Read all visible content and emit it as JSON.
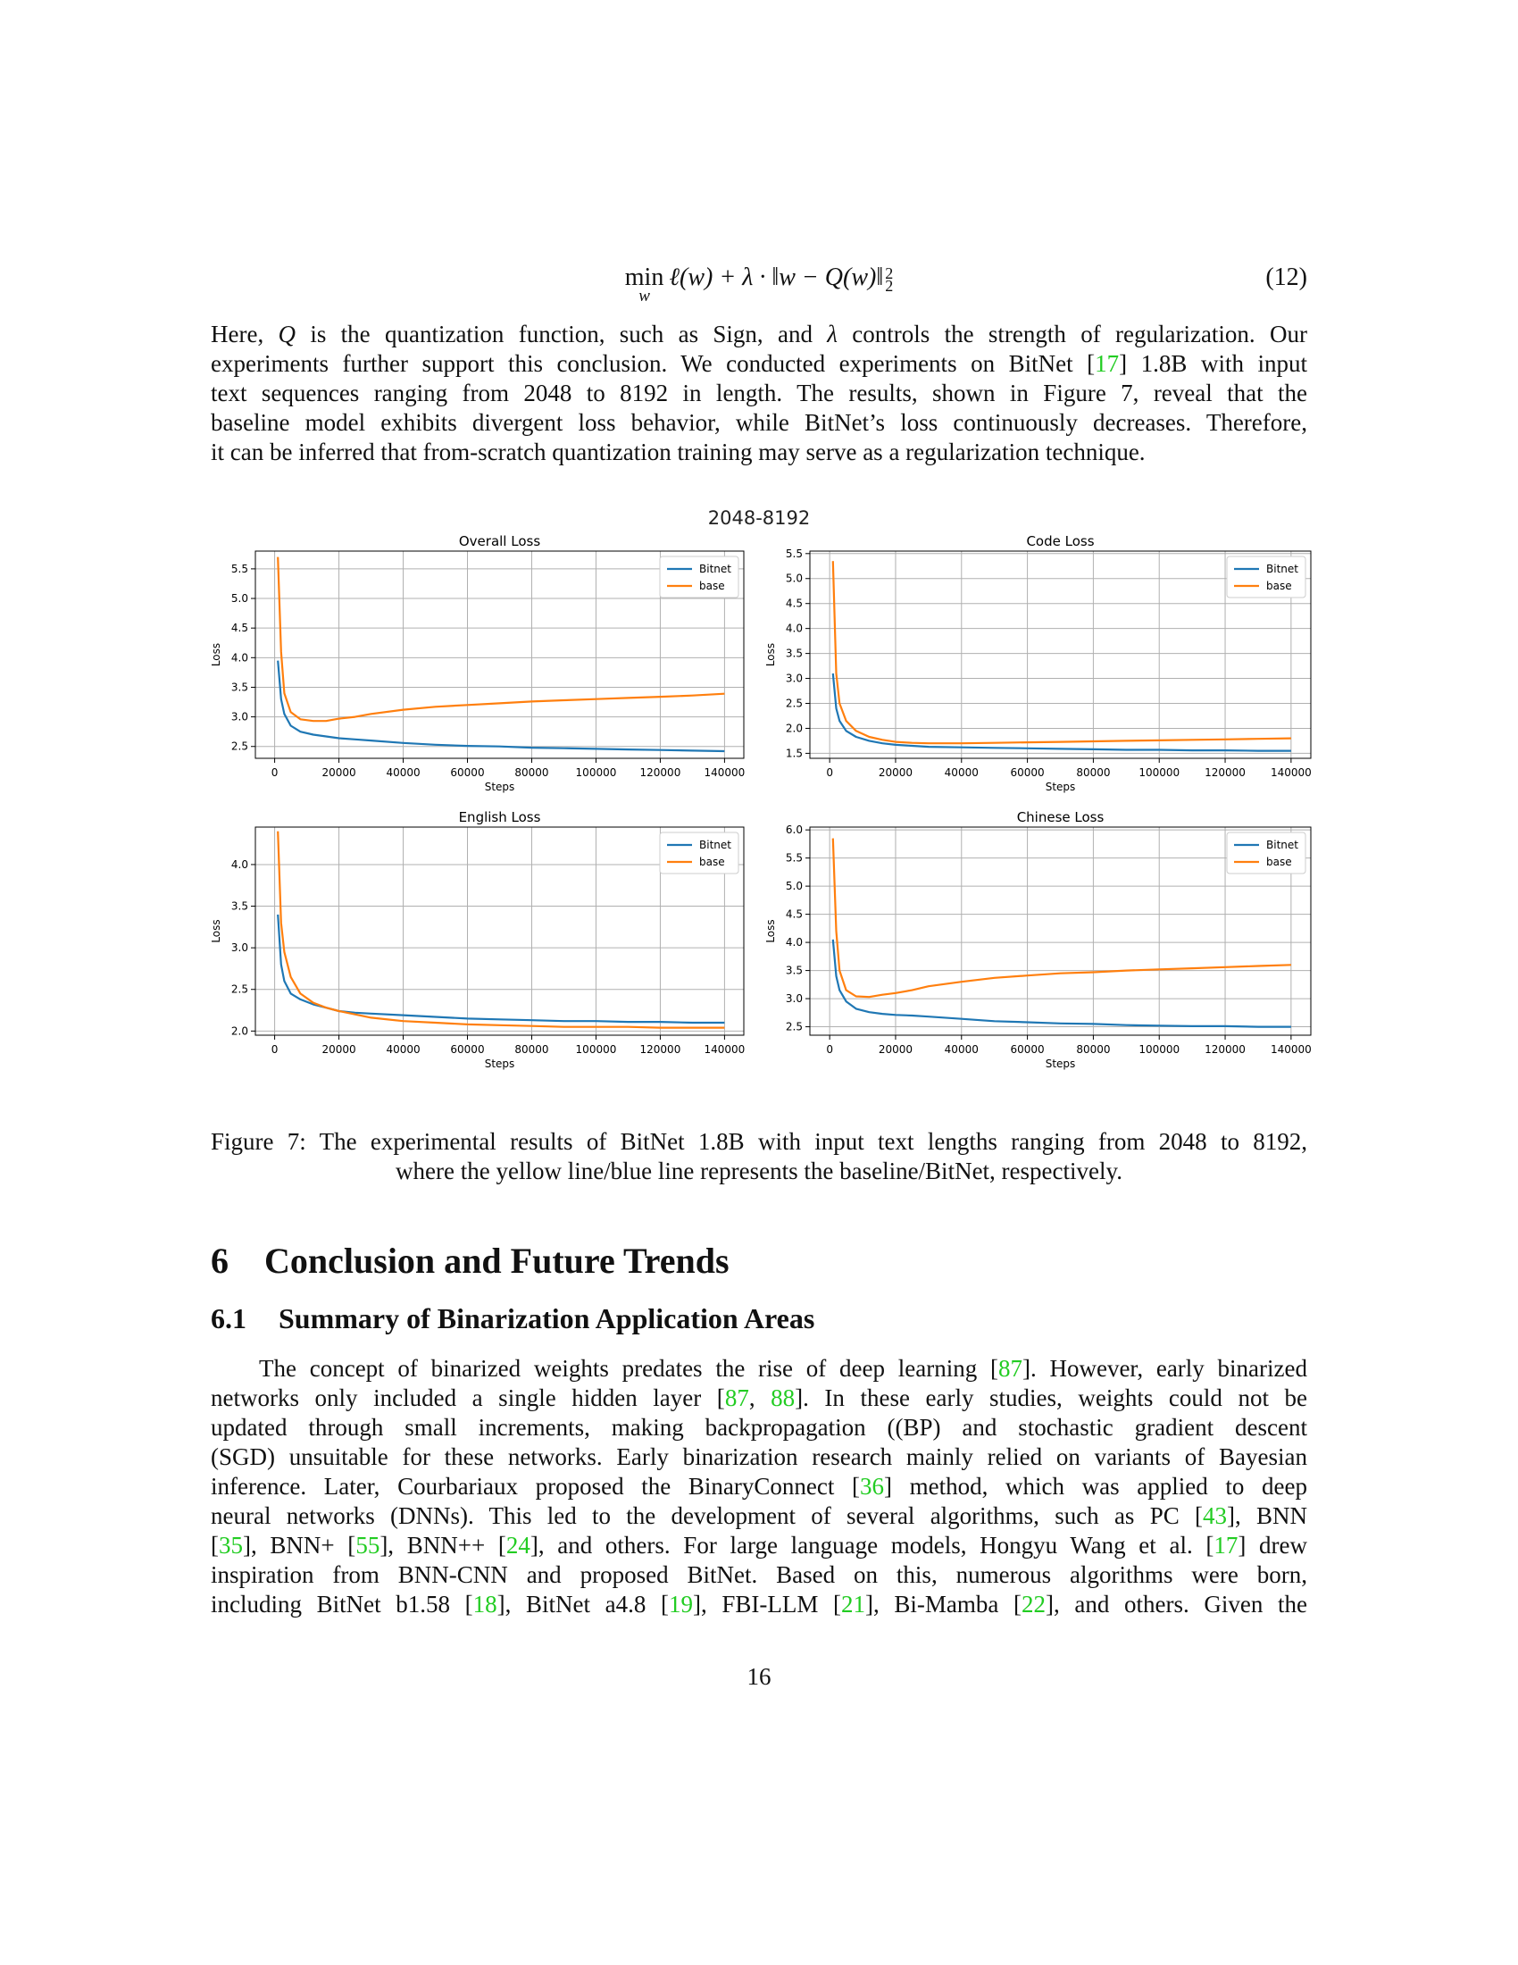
{
  "equation": {
    "min_op": "min",
    "min_sub": "w",
    "body": "ℓ(w) + λ · ‖w − Q(w)‖",
    "sup": "2",
    "sub": "2",
    "number": "(12)"
  },
  "para1": [
    "Here, Q is the quantization function, such as Sign, and λ controls the strength of regularization. Our",
    "experiments further support this conclusion. We conducted experiments on BitNet [17] 1.8B with input",
    "text sequences ranging from 2048 to 8192 in length. The results, shown in Figure 7, reveal that the",
    "baseline model exhibits divergent loss behavior, while BitNet’s loss continuously decreases. Therefore,",
    "it can be inferred that from-scratch quantization training may serve as a regularization technique."
  ],
  "figure": {
    "suptitle": "2048-8192",
    "caption_line1": "Figure 7: The experimental results of BitNet 1.8B with input text lengths ranging from 2048 to 8192,",
    "caption_line2": "where the yellow line/blue line represents the baseline/BitNet, respectively."
  },
  "colors": {
    "bitnet": "#1f77b4",
    "base": "#ff7f0e",
    "ref": "#22cc22",
    "grid": "#b0b0b0"
  },
  "chart_data": [
    {
      "type": "line",
      "title": "Overall Loss",
      "xlabel": "Steps",
      "ylabel": "Loss",
      "xlim": [
        -6000,
        146000
      ],
      "ylim": [
        2.3,
        5.8
      ],
      "xticks": [
        0,
        20000,
        40000,
        60000,
        80000,
        100000,
        120000,
        140000
      ],
      "yticks": [
        2.5,
        3.0,
        3.5,
        4.0,
        4.5,
        5.0,
        5.5
      ],
      "grid": true,
      "legend": "upper right",
      "series": [
        {
          "name": "Bitnet",
          "x": [
            1000,
            2000,
            3000,
            5000,
            8000,
            12000,
            16000,
            20000,
            25000,
            30000,
            40000,
            50000,
            60000,
            70000,
            80000,
            90000,
            100000,
            110000,
            120000,
            130000,
            140000
          ],
          "values": [
            3.95,
            3.3,
            3.05,
            2.85,
            2.75,
            2.7,
            2.67,
            2.64,
            2.62,
            2.6,
            2.56,
            2.53,
            2.51,
            2.5,
            2.48,
            2.47,
            2.46,
            2.45,
            2.44,
            2.43,
            2.42
          ]
        },
        {
          "name": "base",
          "x": [
            1000,
            2000,
            3000,
            5000,
            8000,
            12000,
            16000,
            20000,
            25000,
            30000,
            40000,
            50000,
            60000,
            70000,
            80000,
            90000,
            100000,
            110000,
            120000,
            130000,
            140000
          ],
          "values": [
            5.7,
            4.1,
            3.4,
            3.08,
            2.96,
            2.93,
            2.93,
            2.97,
            3.0,
            3.05,
            3.12,
            3.17,
            3.2,
            3.23,
            3.26,
            3.28,
            3.3,
            3.32,
            3.34,
            3.36,
            3.39
          ]
        }
      ]
    },
    {
      "type": "line",
      "title": "Code Loss",
      "xlabel": "Steps",
      "ylabel": "Loss",
      "xlim": [
        -6000,
        146000
      ],
      "ylim": [
        1.4,
        5.55
      ],
      "xticks": [
        0,
        20000,
        40000,
        60000,
        80000,
        100000,
        120000,
        140000
      ],
      "yticks": [
        1.5,
        2.0,
        2.5,
        3.0,
        3.5,
        4.0,
        4.5,
        5.0,
        5.5
      ],
      "grid": true,
      "legend": "upper right",
      "series": [
        {
          "name": "Bitnet",
          "x": [
            1000,
            2000,
            3000,
            5000,
            8000,
            12000,
            16000,
            20000,
            25000,
            30000,
            40000,
            50000,
            60000,
            70000,
            80000,
            90000,
            100000,
            110000,
            120000,
            130000,
            140000
          ],
          "values": [
            3.1,
            2.4,
            2.15,
            1.95,
            1.83,
            1.75,
            1.7,
            1.67,
            1.65,
            1.63,
            1.62,
            1.61,
            1.6,
            1.59,
            1.58,
            1.57,
            1.57,
            1.56,
            1.56,
            1.55,
            1.55
          ]
        },
        {
          "name": "base",
          "x": [
            1000,
            2000,
            3000,
            5000,
            8000,
            12000,
            16000,
            20000,
            25000,
            30000,
            40000,
            50000,
            60000,
            70000,
            80000,
            90000,
            100000,
            110000,
            120000,
            130000,
            140000
          ],
          "values": [
            5.35,
            3.1,
            2.5,
            2.15,
            1.95,
            1.83,
            1.77,
            1.73,
            1.71,
            1.7,
            1.7,
            1.71,
            1.72,
            1.73,
            1.74,
            1.75,
            1.76,
            1.77,
            1.78,
            1.79,
            1.8
          ]
        }
      ]
    },
    {
      "type": "line",
      "title": "English Loss",
      "xlabel": "Steps",
      "ylabel": "Loss",
      "xlim": [
        -6000,
        146000
      ],
      "ylim": [
        1.95,
        4.45
      ],
      "xticks": [
        0,
        20000,
        40000,
        60000,
        80000,
        100000,
        120000,
        140000
      ],
      "yticks": [
        2.0,
        2.5,
        3.0,
        3.5,
        4.0
      ],
      "grid": true,
      "legend": "upper right",
      "series": [
        {
          "name": "Bitnet",
          "x": [
            1000,
            2000,
            3000,
            5000,
            8000,
            12000,
            16000,
            20000,
            25000,
            30000,
            40000,
            50000,
            60000,
            70000,
            80000,
            90000,
            100000,
            110000,
            120000,
            130000,
            140000
          ],
          "values": [
            3.4,
            2.8,
            2.6,
            2.45,
            2.38,
            2.32,
            2.28,
            2.24,
            2.22,
            2.21,
            2.19,
            2.17,
            2.15,
            2.14,
            2.13,
            2.12,
            2.12,
            2.11,
            2.11,
            2.1,
            2.1
          ]
        },
        {
          "name": "base",
          "x": [
            1000,
            2000,
            3000,
            5000,
            8000,
            12000,
            16000,
            20000,
            25000,
            30000,
            40000,
            50000,
            60000,
            70000,
            80000,
            90000,
            100000,
            110000,
            120000,
            130000,
            140000
          ],
          "values": [
            4.4,
            3.3,
            2.95,
            2.65,
            2.45,
            2.34,
            2.28,
            2.24,
            2.2,
            2.16,
            2.12,
            2.1,
            2.08,
            2.07,
            2.06,
            2.05,
            2.05,
            2.05,
            2.04,
            2.04,
            2.04
          ]
        }
      ]
    },
    {
      "type": "line",
      "title": "Chinese Loss",
      "xlabel": "Steps",
      "ylabel": "Loss",
      "xlim": [
        -6000,
        146000
      ],
      "ylim": [
        2.35,
        6.05
      ],
      "xticks": [
        0,
        20000,
        40000,
        60000,
        80000,
        100000,
        120000,
        140000
      ],
      "yticks": [
        2.5,
        3.0,
        3.5,
        4.0,
        4.5,
        5.0,
        5.5,
        6.0
      ],
      "grid": true,
      "legend": "upper right",
      "series": [
        {
          "name": "Bitnet",
          "x": [
            1000,
            2000,
            3000,
            5000,
            8000,
            12000,
            16000,
            20000,
            25000,
            30000,
            40000,
            50000,
            60000,
            70000,
            80000,
            90000,
            100000,
            110000,
            120000,
            130000,
            140000
          ],
          "values": [
            4.05,
            3.4,
            3.15,
            2.95,
            2.82,
            2.76,
            2.73,
            2.71,
            2.7,
            2.68,
            2.64,
            2.6,
            2.58,
            2.56,
            2.55,
            2.53,
            2.52,
            2.51,
            2.51,
            2.5,
            2.5
          ]
        },
        {
          "name": "base",
          "x": [
            1000,
            2000,
            3000,
            5000,
            8000,
            12000,
            16000,
            20000,
            25000,
            30000,
            40000,
            50000,
            60000,
            70000,
            80000,
            90000,
            100000,
            110000,
            120000,
            130000,
            140000
          ],
          "values": [
            5.85,
            4.2,
            3.5,
            3.15,
            3.04,
            3.03,
            3.07,
            3.1,
            3.15,
            3.22,
            3.3,
            3.37,
            3.41,
            3.45,
            3.47,
            3.5,
            3.52,
            3.54,
            3.56,
            3.58,
            3.6
          ]
        }
      ]
    }
  ],
  "section": {
    "number": "6",
    "title": "Conclusion and Future Trends"
  },
  "subsection": {
    "number": "6.1",
    "title": "Summary of Binarization Application Areas"
  },
  "para2": [
    "The concept of binarized weights predates the rise of deep learning [87]. However, early binarized",
    "networks only included a single hidden layer [87, 88]. In these early studies, weights could not be",
    "updated through small increments, making backpropagation ((BP) and stochastic gradient descent",
    "(SGD) unsuitable for these networks. Early binarization research mainly relied on variants of Bayesian",
    "inference. Later, Courbariaux proposed the BinaryConnect [36] method, which was applied to deep",
    "neural networks (DNNs). This led to the development of several algorithms, such as PC [43], BNN",
    "[35], BNN+ [55], BNN++ [24], and others. For large language models, Hongyu Wang et al. [17] drew",
    "inspiration from BNN-CNN and proposed BitNet. Based on this, numerous algorithms were born,",
    "including BitNet b1.58 [18], BitNet a4.8 [19], FBI-LLM [21], Bi-Mamba [22], and others. Given the"
  ],
  "page_number": "16"
}
